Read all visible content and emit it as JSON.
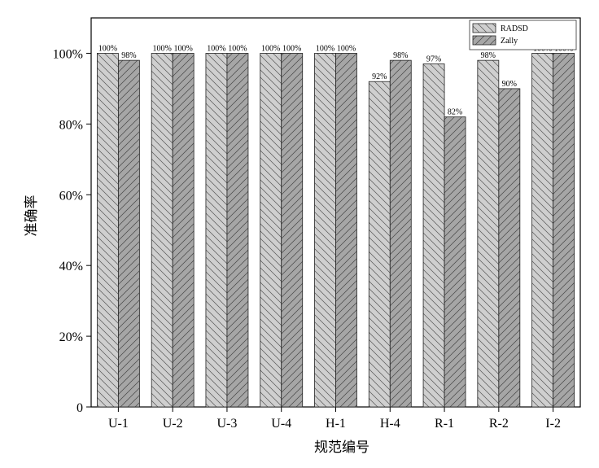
{
  "chart_data": {
    "type": "bar",
    "xlabel": "规范编号",
    "ylabel": "准确率",
    "categories": [
      "U-1",
      "U-2",
      "U-3",
      "U-4",
      "H-1",
      "H-4",
      "R-1",
      "R-2",
      "I-2"
    ],
    "series": [
      {
        "name": "RADSD",
        "values": [
          100,
          100,
          100,
          100,
          100,
          92,
          97,
          98,
          100
        ],
        "labels": [
          "100%",
          "100%",
          "100%",
          "100%",
          "100%",
          "92%",
          "97%",
          "98%",
          "100%"
        ],
        "fill": "#cfcfcf",
        "pattern": "backslash"
      },
      {
        "name": "Zally",
        "values": [
          98,
          100,
          100,
          100,
          100,
          98,
          82,
          90,
          100
        ],
        "labels": [
          "98%",
          "100%",
          "100%",
          "100%",
          "100%",
          "98%",
          "82%",
          "90%",
          "100%"
        ],
        "fill": "#a6a6a6",
        "pattern": "slash"
      }
    ],
    "ylim": [
      0,
      110
    ],
    "yticks": [
      0,
      20,
      40,
      60,
      80,
      100
    ],
    "ytick_labels": [
      "0",
      "20%",
      "40%",
      "60%",
      "80%",
      "100%"
    ],
    "legend_position": "top-right",
    "grid": false
  }
}
